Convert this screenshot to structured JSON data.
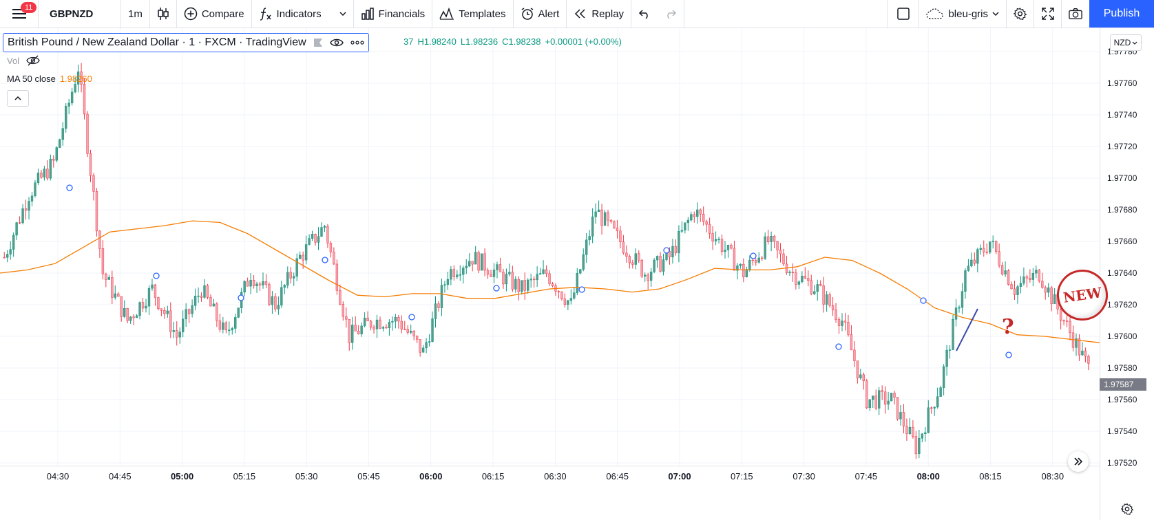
{
  "toolbar": {
    "notifications": "11",
    "symbol": "GBPNZD",
    "interval": "1m",
    "compare": "Compare",
    "indicators": "Indicators",
    "financials": "Financials",
    "templates": "Templates",
    "alert": "Alert",
    "replay": "Replay",
    "layout": "bleu-gris",
    "publish": "Publish"
  },
  "legend": {
    "title": "British Pound / New Zealand Dollar · 1 · FXCM · TradingView",
    "open_tail": "37",
    "high": "H1.98240",
    "low": "L1.98236",
    "close": "C1.98238",
    "change": "+0.00001 (+0.00%)",
    "vol_label": "Vol",
    "ma_label": "MA 50 close",
    "ma_value": "1.98260"
  },
  "price_axis": {
    "currency": "NZD",
    "current_price": "1.97587",
    "labels": [
      "1.97780",
      "1.97760",
      "1.97740",
      "1.97720",
      "1.97700",
      "1.97680",
      "1.97660",
      "1.97640",
      "1.97620",
      "1.97600",
      "1.97580",
      "1.97560",
      "1.97540",
      "1.97520"
    ]
  },
  "time_axis": {
    "labels": [
      "04:30",
      "04:45",
      "05:00",
      "05:15",
      "05:30",
      "05:45",
      "06:00",
      "06:15",
      "06:30",
      "06:45",
      "07:00",
      "07:15",
      "07:30",
      "07:45",
      "08:00",
      "08:15",
      "08:30"
    ],
    "bold": [
      "05:00",
      "06:00",
      "07:00",
      "08:00"
    ]
  },
  "colors": {
    "up": "#089981",
    "down": "#f23645",
    "up_fill": "#5b9a8b",
    "down_fill": "#f4a5b0",
    "ma": "#f57c00",
    "accent": "#2962ff"
  },
  "chart_data": {
    "type": "candlestick",
    "symbol": "GBPNZD",
    "interval": "1m",
    "ylim": [
      1.9752,
      1.9779
    ],
    "price_ticks": [
      1.9778,
      1.9776,
      1.9774,
      1.9772,
      1.977,
      1.9768,
      1.9766,
      1.9764,
      1.9762,
      1.976,
      1.9758,
      1.9756,
      1.9754,
      1.9752
    ],
    "series": [
      {
        "name": "MA 50 close",
        "values": [
          1.9764,
          1.97642,
          1.97646,
          1.97656,
          1.97666,
          1.97668,
          1.9767,
          1.97673,
          1.97672,
          1.97665,
          1.97655,
          1.97645,
          1.97635,
          1.97626,
          1.97625,
          1.97627,
          1.97627,
          1.97624,
          1.97624,
          1.97627,
          1.9763,
          1.97631,
          1.9763,
          1.97628,
          1.9763,
          1.97636,
          1.97643,
          1.97642,
          1.97642,
          1.97644,
          1.9765,
          1.97648,
          1.9764,
          1.9763,
          1.97618,
          1.97612,
          1.97608,
          1.97601,
          1.976,
          1.97598,
          1.97596
        ]
      },
      {
        "name": "close",
        "values": [
          1.9765,
          1.9769,
          1.9771,
          1.9777,
          1.9764,
          1.9761,
          1.9763,
          1.976,
          1.9763,
          1.976,
          1.9764,
          1.9762,
          1.9765,
          1.9767,
          1.976,
          1.9761,
          1.9761,
          1.9759,
          1.9764,
          1.9765,
          1.9764,
          1.9763,
          1.9764,
          1.9762,
          1.9768,
          1.9766,
          1.9764,
          1.9765,
          1.9768,
          1.9766,
          1.9764,
          1.9766,
          1.9764,
          1.9763,
          1.9761,
          1.9756,
          1.9756,
          1.9753,
          1.9757,
          1.9764,
          1.9766,
          1.9763,
          1.9764,
          1.9761,
          1.9758
        ]
      }
    ],
    "annotations": [
      "NEW",
      "?"
    ]
  }
}
